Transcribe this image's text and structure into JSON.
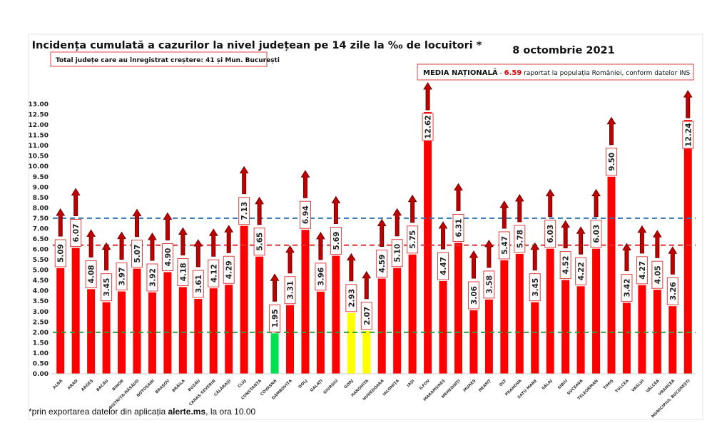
{
  "chart_data": {
    "type": "bar",
    "title": "Incidența cumulată a cazurilor la nivel județean pe 14 zile la ‰ de locuitori *",
    "date": "8 octombrie 2021",
    "annotation_total": "Total județe care au înregistrat creștere:  41 și Mun. București",
    "national_average": {
      "label": "MEDIA NAȚIONALĂ",
      "separator": " - ",
      "value": "6.59",
      "text": " raportat la populația României, conform datelor INS"
    },
    "footnote_prefix": "*prin exportarea datelor din aplicația ",
    "footnote_bold": "alerte.ms",
    "footnote_suffix": ", la ora 10.00",
    "xlabel": "",
    "ylabel": "",
    "ylim": [
      0,
      13
    ],
    "yticks": [
      "0.00",
      "0.50",
      "1.00",
      "1.50",
      "2.00",
      "2.50",
      "3.00",
      "3.50",
      "4.00",
      "4.50",
      "5.00",
      "5.50",
      "6.00",
      "6.50",
      "7.00",
      "7.50",
      "8.00",
      "8.50",
      "9.00",
      "9.50",
      "10.00",
      "10.50",
      "11.00",
      "11.50",
      "12.00",
      "12.50",
      "13.00"
    ],
    "grid": false,
    "reference_lines": [
      {
        "value": 7.5,
        "color": "#2e75b6"
      },
      {
        "value": 6.2,
        "color": "#e03030"
      },
      {
        "value": 2.0,
        "color": "#2e9e3e"
      }
    ],
    "trend": "increase",
    "colors": {
      "default": "#ff0000",
      "green": "#00e050",
      "yellow": "#ffff00",
      "arrow": "#c00000"
    },
    "categories": [
      "ALBA",
      "ARAD",
      "ARGEȘ",
      "BACĂU",
      "BIHOR",
      "BISTRIȚA-NĂSĂUD",
      "BOTOȘANI",
      "BRAȘOV",
      "BRĂILA",
      "BUZĂU",
      "CARAȘ-SEVERIN",
      "CĂLĂRAȘI",
      "CLUJ",
      "CONSTANȚA",
      "COVASNA",
      "DÂMBOVIȚA",
      "DOLJ",
      "GALAȚI",
      "GIURGIU",
      "GORJ",
      "HARGHITA",
      "HUNEDOARA",
      "IALOMIȚA",
      "IAȘI",
      "ILFOV",
      "MARAMUREȘ",
      "MEHEDINȚI",
      "MUREȘ",
      "NEAMȚ",
      "OLT",
      "PRAHOVA",
      "SATU MARE",
      "SĂLAJ",
      "SIBIU",
      "SUCEAVA",
      "TELEORMAN",
      "TIMIȘ",
      "TULCEA",
      "VASLUI",
      "VÂLCEA",
      "VRANCEA",
      "MUNICIPIUL BUCUREȘTI"
    ],
    "values": [
      5.09,
      6.07,
      4.08,
      3.45,
      3.97,
      5.07,
      3.92,
      4.9,
      4.18,
      3.61,
      4.12,
      4.29,
      7.13,
      5.65,
      1.95,
      3.31,
      6.94,
      3.96,
      5.69,
      2.93,
      2.07,
      4.59,
      5.1,
      5.75,
      12.62,
      4.47,
      6.31,
      3.06,
      3.58,
      5.47,
      5.78,
      3.45,
      6.03,
      4.52,
      4.22,
      6.03,
      9.5,
      3.42,
      4.27,
      4.05,
      3.26,
      12.24
    ],
    "data_labels": [
      "5.09",
      "6.07",
      "4.08",
      "3.45",
      "3.97",
      "5.07",
      "3.92",
      "4.90",
      "4.18",
      "3.61",
      "4.12",
      "4.29",
      "7.13",
      "5.65",
      "1.95",
      "3.31",
      "6.94",
      "3.96",
      "5.69",
      "2.93",
      "2.07",
      "4.59",
      "5.10",
      "5.75",
      "12.62",
      "4.47",
      "6.31",
      "3.06",
      "3.58",
      "5.47",
      "5.78",
      "3.45",
      "6.03",
      "4.52",
      "4.22",
      "6.03",
      "9.50",
      "3.42",
      "4.27",
      "4.05",
      "3.26",
      "12.24"
    ],
    "bar_colors": [
      "default",
      "default",
      "default",
      "default",
      "default",
      "default",
      "default",
      "default",
      "default",
      "default",
      "default",
      "default",
      "default",
      "default",
      "green",
      "default",
      "default",
      "default",
      "default",
      "yellow",
      "yellow",
      "default",
      "default",
      "default",
      "default",
      "default",
      "default",
      "default",
      "default",
      "default",
      "default",
      "default",
      "default",
      "default",
      "default",
      "default",
      "default",
      "default",
      "default",
      "default",
      "default",
      "default"
    ]
  }
}
